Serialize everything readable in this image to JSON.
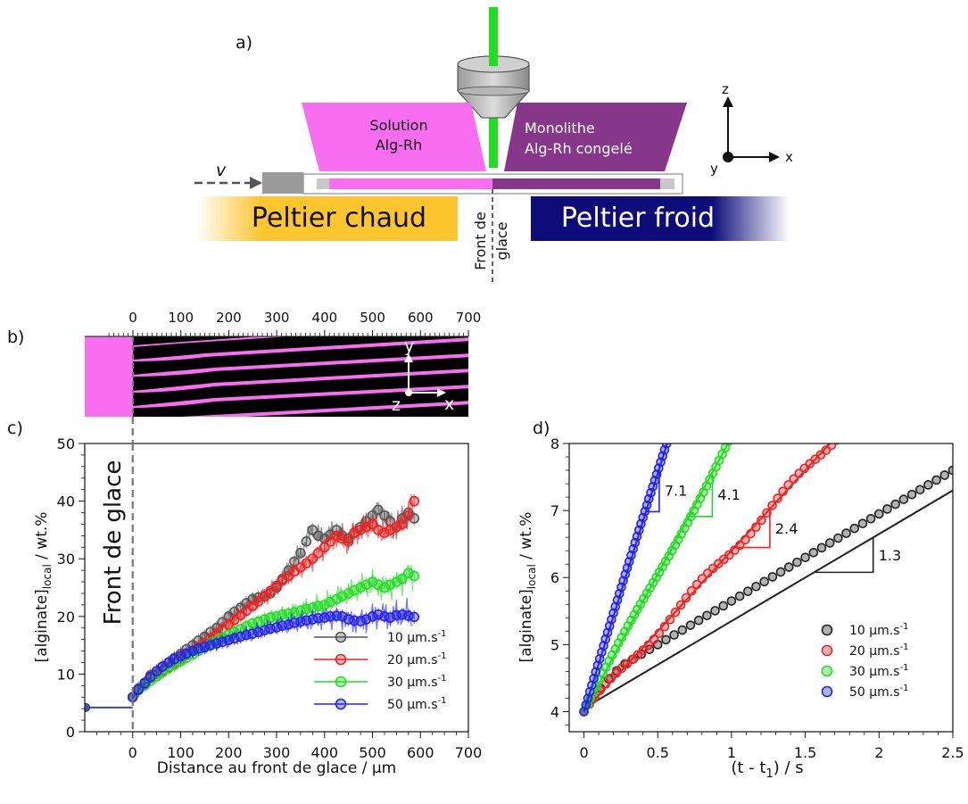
{
  "panel_a": {
    "label": "a)",
    "solution_line1": "Solution",
    "solution_line2": "Alg-Rh",
    "monolith_line1": "Monolithe",
    "monolith_line2": "Alg-Rh congelé",
    "velocity_symbol": "v",
    "hot_peltier": "Peltier chaud",
    "cold_peltier": "Peltier froid",
    "ice_front_line1": "Front de",
    "ice_front_line2": "glace",
    "axis_z": "z",
    "axis_x": "x",
    "axis_y": "y",
    "colors": {
      "solution": "#f76ef0",
      "monolith": "#87378a",
      "hot": "#fdc52e",
      "cold": "#0d0c78",
      "laser": "#22dd22"
    }
  },
  "panel_b": {
    "label": "b)",
    "ticks": [
      "0",
      "100",
      "200",
      "300",
      "400",
      "500",
      "600",
      "700"
    ],
    "axis_y": "y",
    "axis_z": "z",
    "axis_x": "x"
  },
  "chart_data": [
    {
      "panel": "c)",
      "type": "scatter",
      "xlabel": "Distance au front de glace / µm",
      "ylabel_main": "[alginate]",
      "ylabel_sub": "local",
      "ylabel_tail": " / wt.%",
      "xlim": [
        -100,
        700
      ],
      "ylim": [
        0,
        50
      ],
      "xticks": [
        0,
        100,
        200,
        300,
        400,
        500,
        600,
        700
      ],
      "yticks": [
        0,
        10,
        20,
        30,
        40,
        50
      ],
      "annotation": "Front de glace",
      "legend_position": "lower-right",
      "initial_concentration": 4.2,
      "series": [
        {
          "name": "10 µm.s",
          "superscript": "-1",
          "color": "#555555",
          "x": [
            0,
            12,
            25,
            37,
            50,
            62,
            75,
            87,
            100,
            112,
            125,
            137,
            150,
            162,
            175,
            187,
            200,
            212,
            225,
            237,
            250,
            262,
            275,
            287,
            300,
            312,
            325,
            337,
            350,
            362,
            375,
            387,
            400,
            412,
            425,
            437,
            450,
            462,
            475,
            487,
            500,
            512,
            525,
            537,
            550,
            562,
            575,
            587
          ],
          "y": [
            6.0,
            7.5,
            8.5,
            9.8,
            10.5,
            11.3,
            12.0,
            12.8,
            13.5,
            14.3,
            15.0,
            15.8,
            16.5,
            17.3,
            18.0,
            19.0,
            20.0,
            20.8,
            21.5,
            22.3,
            23.0,
            23.3,
            23.5,
            24.0,
            25.0,
            26.5,
            28.0,
            29.5,
            31.0,
            33.0,
            35.0,
            34.0,
            33.5,
            34.2,
            35.0,
            34.0,
            33.5,
            34.5,
            35.5,
            36.5,
            37.5,
            38.5,
            37.5,
            36.5,
            35.5,
            37.0,
            38.0,
            37.0
          ]
        },
        {
          "name": "20 µm.s",
          "superscript": "-1",
          "color": "#ee2222",
          "x": [
            0,
            12,
            25,
            37,
            50,
            62,
            75,
            87,
            100,
            112,
            125,
            137,
            150,
            162,
            175,
            187,
            200,
            212,
            225,
            237,
            250,
            262,
            275,
            287,
            300,
            312,
            325,
            337,
            350,
            362,
            375,
            387,
            400,
            412,
            425,
            437,
            450,
            462,
            475,
            487,
            500,
            512,
            525,
            537,
            550,
            562,
            575,
            587
          ],
          "y": [
            6.0,
            7.3,
            8.3,
            9.3,
            10.0,
            10.6,
            11.2,
            11.9,
            12.6,
            13.3,
            14.0,
            14.7,
            15.4,
            16.2,
            17.0,
            17.8,
            18.6,
            19.4,
            20.2,
            21.0,
            21.8,
            22.6,
            23.5,
            24.4,
            25.3,
            26.2,
            27.0,
            27.8,
            28.5,
            29.2,
            30.0,
            31.0,
            32.0,
            33.0,
            34.0,
            33.5,
            33.0,
            34.5,
            35.0,
            35.5,
            36.0,
            35.0,
            34.5,
            35.0,
            35.5,
            36.0,
            37.5,
            40.0
          ]
        },
        {
          "name": "30 µm.s",
          "superscript": "-1",
          "color": "#22dd22",
          "x": [
            0,
            12,
            25,
            37,
            50,
            62,
            75,
            87,
            100,
            112,
            125,
            137,
            150,
            162,
            175,
            187,
            200,
            212,
            225,
            237,
            250,
            262,
            275,
            287,
            300,
            312,
            325,
            337,
            350,
            362,
            375,
            387,
            400,
            412,
            425,
            437,
            450,
            462,
            475,
            487,
            500,
            512,
            525,
            537,
            550,
            562,
            575,
            587
          ],
          "y": [
            6.0,
            7.2,
            8.0,
            8.8,
            9.6,
            10.3,
            11.0,
            11.6,
            12.2,
            12.8,
            13.4,
            14.0,
            14.6,
            15.2,
            15.8,
            16.3,
            16.8,
            17.3,
            17.8,
            18.3,
            18.8,
            19.1,
            19.5,
            19.8,
            20.0,
            20.3,
            20.5,
            20.7,
            21.0,
            21.3,
            21.5,
            21.8,
            22.0,
            22.5,
            23.0,
            23.5,
            24.0,
            24.5,
            25.0,
            25.5,
            26.0,
            25.5,
            25.0,
            25.5,
            26.0,
            26.5,
            27.5,
            27.0
          ]
        },
        {
          "name": "50 µm.s",
          "superscript": "-1",
          "color": "#2222ee",
          "x": [
            0,
            12,
            25,
            37,
            50,
            62,
            75,
            87,
            100,
            112,
            125,
            137,
            150,
            162,
            175,
            187,
            200,
            212,
            225,
            237,
            250,
            262,
            275,
            287,
            300,
            312,
            325,
            337,
            350,
            362,
            375,
            387,
            400,
            412,
            425,
            437,
            450,
            462,
            475,
            487,
            500,
            512,
            525,
            537,
            550,
            562,
            575,
            587
          ],
          "y": [
            6.0,
            7.3,
            8.4,
            9.5,
            10.5,
            11.3,
            12.0,
            12.6,
            13.1,
            13.6,
            14.0,
            14.4,
            14.7,
            15.0,
            15.3,
            15.6,
            15.9,
            16.2,
            16.5,
            16.8,
            17.0,
            17.3,
            17.6,
            17.9,
            18.1,
            18.4,
            18.6,
            18.9,
            19.1,
            19.3,
            19.5,
            19.7,
            19.8,
            20.0,
            20.1,
            20.0,
            19.5,
            19.3,
            19.2,
            19.5,
            20.0,
            20.3,
            20.0,
            19.8,
            20.2,
            20.3,
            20.1,
            19.9
          ]
        }
      ]
    },
    {
      "panel": "d)",
      "type": "scatter",
      "xlabel": "(t - t",
      "xlabel_sub": "1",
      "xlabel_tail": ") / s",
      "ylabel_main": "[alginate]",
      "ylabel_sub": "local",
      "ylabel_tail": " / wt.%",
      "xlim": [
        -0.1,
        2.5
      ],
      "ylim": [
        3.7,
        8
      ],
      "xticks": [
        0,
        0.5,
        1,
        1.5,
        2,
        2.5
      ],
      "xtick_labels": [
        "0",
        "0.5",
        "1",
        "1.5",
        "2",
        "2.5"
      ],
      "yticks": [
        4,
        5,
        6,
        7,
        8
      ],
      "legend_position": "lower-right",
      "series": [
        {
          "name": "10 µm.s",
          "superscript": "-1",
          "color": "#222222",
          "slope": 1.3,
          "slope_label": "1.3",
          "fit_intercept": 4.05,
          "x_max": 2.5
        },
        {
          "name": "20 µm.s",
          "superscript": "-1",
          "color": "#ee2222",
          "slope": 2.4,
          "slope_label": "2.4",
          "fit_intercept": 4.0,
          "x_max": 1.75
        },
        {
          "name": "30 µm.s",
          "superscript": "-1",
          "color": "#22dd22",
          "slope": 4.1,
          "slope_label": "4.1",
          "fit_intercept": 4.0,
          "x_max": 0.98
        },
        {
          "name": "50 µm.s",
          "superscript": "-1",
          "color": "#2222ee",
          "slope": 7.1,
          "slope_label": "7.1",
          "fit_intercept": 4.0,
          "x_max": 0.56
        }
      ]
    }
  ]
}
